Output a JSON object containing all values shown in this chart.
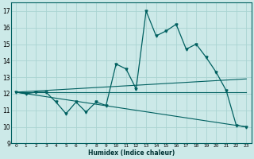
{
  "xlabel": "Humidex (Indice chaleur)",
  "xlim": [
    -0.5,
    23.5
  ],
  "ylim": [
    9,
    17.5
  ],
  "yticks": [
    9,
    10,
    11,
    12,
    13,
    14,
    15,
    16,
    17
  ],
  "xticks": [
    0,
    1,
    2,
    3,
    4,
    5,
    6,
    7,
    8,
    9,
    10,
    11,
    12,
    13,
    14,
    15,
    16,
    17,
    18,
    19,
    20,
    21,
    22,
    23
  ],
  "bg_color": "#cce9e8",
  "grid_color": "#aad4d2",
  "line_color": "#006060",
  "humidex_x": [
    0,
    1,
    2,
    3,
    4,
    5,
    6,
    7,
    8,
    9,
    10,
    11,
    12,
    13,
    14,
    15,
    16,
    17,
    18,
    19,
    20,
    21,
    22,
    23
  ],
  "humidex_y": [
    12.1,
    12.0,
    12.1,
    12.1,
    11.5,
    10.8,
    11.5,
    10.9,
    11.5,
    11.3,
    13.8,
    13.5,
    12.3,
    17.0,
    15.5,
    15.8,
    16.2,
    14.7,
    15.0,
    14.2,
    13.3,
    12.2,
    10.1,
    10.0
  ],
  "line1_x": [
    0,
    23
  ],
  "line1_y": [
    12.1,
    12.1
  ],
  "line2_x": [
    0,
    23
  ],
  "line2_y": [
    12.1,
    12.9
  ],
  "line3_x": [
    0,
    23
  ],
  "line3_y": [
    12.1,
    10.0
  ],
  "marker_x": [
    0,
    1,
    2,
    3,
    4,
    5,
    6,
    7,
    8,
    9,
    10,
    11,
    12,
    13,
    14,
    15,
    16,
    17,
    18,
    19,
    20,
    21,
    22,
    23
  ],
  "marker_y": [
    12.1,
    12.0,
    12.1,
    12.1,
    11.5,
    10.8,
    11.5,
    10.9,
    11.5,
    11.3,
    13.8,
    13.5,
    12.3,
    17.0,
    15.5,
    15.8,
    16.2,
    14.7,
    15.0,
    14.2,
    13.3,
    12.2,
    10.1,
    10.0
  ]
}
